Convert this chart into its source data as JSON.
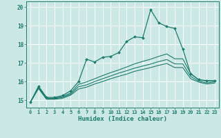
{
  "xlabel": "Humidex (Indice chaleur)",
  "bg_color": "#cce8e4",
  "grid_color": "#ffffff",
  "line_color": "#1a7a6e",
  "xlim": [
    -0.5,
    23.5
  ],
  "ylim": [
    14.6,
    20.3
  ],
  "xticks": [
    0,
    1,
    2,
    3,
    4,
    5,
    6,
    7,
    8,
    9,
    10,
    11,
    12,
    13,
    14,
    15,
    16,
    17,
    18,
    19,
    20,
    21,
    22,
    23
  ],
  "yticks": [
    15,
    16,
    17,
    18,
    19,
    20
  ],
  "line1_x": [
    0,
    1,
    2,
    3,
    4,
    5,
    6,
    7,
    8,
    9,
    10,
    11,
    12,
    13,
    14,
    15,
    16,
    17,
    18,
    19,
    20,
    21,
    22,
    23
  ],
  "line1_y": [
    14.9,
    15.75,
    15.15,
    15.15,
    15.25,
    15.5,
    16.0,
    17.2,
    17.05,
    17.3,
    17.35,
    17.55,
    18.15,
    18.4,
    18.35,
    19.85,
    19.15,
    18.95,
    18.85,
    17.75,
    16.4,
    16.1,
    16.05,
    16.05
  ],
  "line2_x": [
    0,
    1,
    2,
    3,
    4,
    5,
    6,
    7,
    8,
    9,
    10,
    11,
    12,
    13,
    14,
    15,
    16,
    17,
    18,
    19,
    20,
    21,
    22,
    23
  ],
  "line2_y": [
    14.9,
    15.72,
    15.1,
    15.1,
    15.2,
    15.38,
    15.85,
    15.98,
    16.15,
    16.32,
    16.48,
    16.62,
    16.78,
    16.95,
    17.08,
    17.2,
    17.35,
    17.48,
    17.22,
    17.22,
    16.42,
    16.1,
    16.02,
    16.02
  ],
  "line3_x": [
    0,
    1,
    2,
    3,
    4,
    5,
    6,
    7,
    8,
    9,
    10,
    11,
    12,
    13,
    14,
    15,
    16,
    17,
    18,
    19,
    20,
    21,
    22,
    23
  ],
  "line3_y": [
    14.9,
    15.68,
    15.08,
    15.08,
    15.15,
    15.32,
    15.72,
    15.82,
    16.0,
    16.15,
    16.3,
    16.45,
    16.58,
    16.72,
    16.83,
    16.94,
    17.07,
    17.18,
    16.95,
    16.95,
    16.27,
    16.02,
    15.93,
    15.98
  ],
  "line4_x": [
    0,
    1,
    2,
    3,
    4,
    5,
    6,
    7,
    8,
    9,
    10,
    11,
    12,
    13,
    14,
    15,
    16,
    17,
    18,
    19,
    20,
    21,
    22,
    23
  ],
  "line4_y": [
    14.9,
    15.62,
    15.05,
    15.05,
    15.1,
    15.27,
    15.6,
    15.7,
    15.87,
    16.0,
    16.15,
    16.28,
    16.4,
    16.55,
    16.65,
    16.75,
    16.87,
    16.97,
    16.75,
    16.75,
    16.15,
    15.97,
    15.87,
    15.92
  ]
}
